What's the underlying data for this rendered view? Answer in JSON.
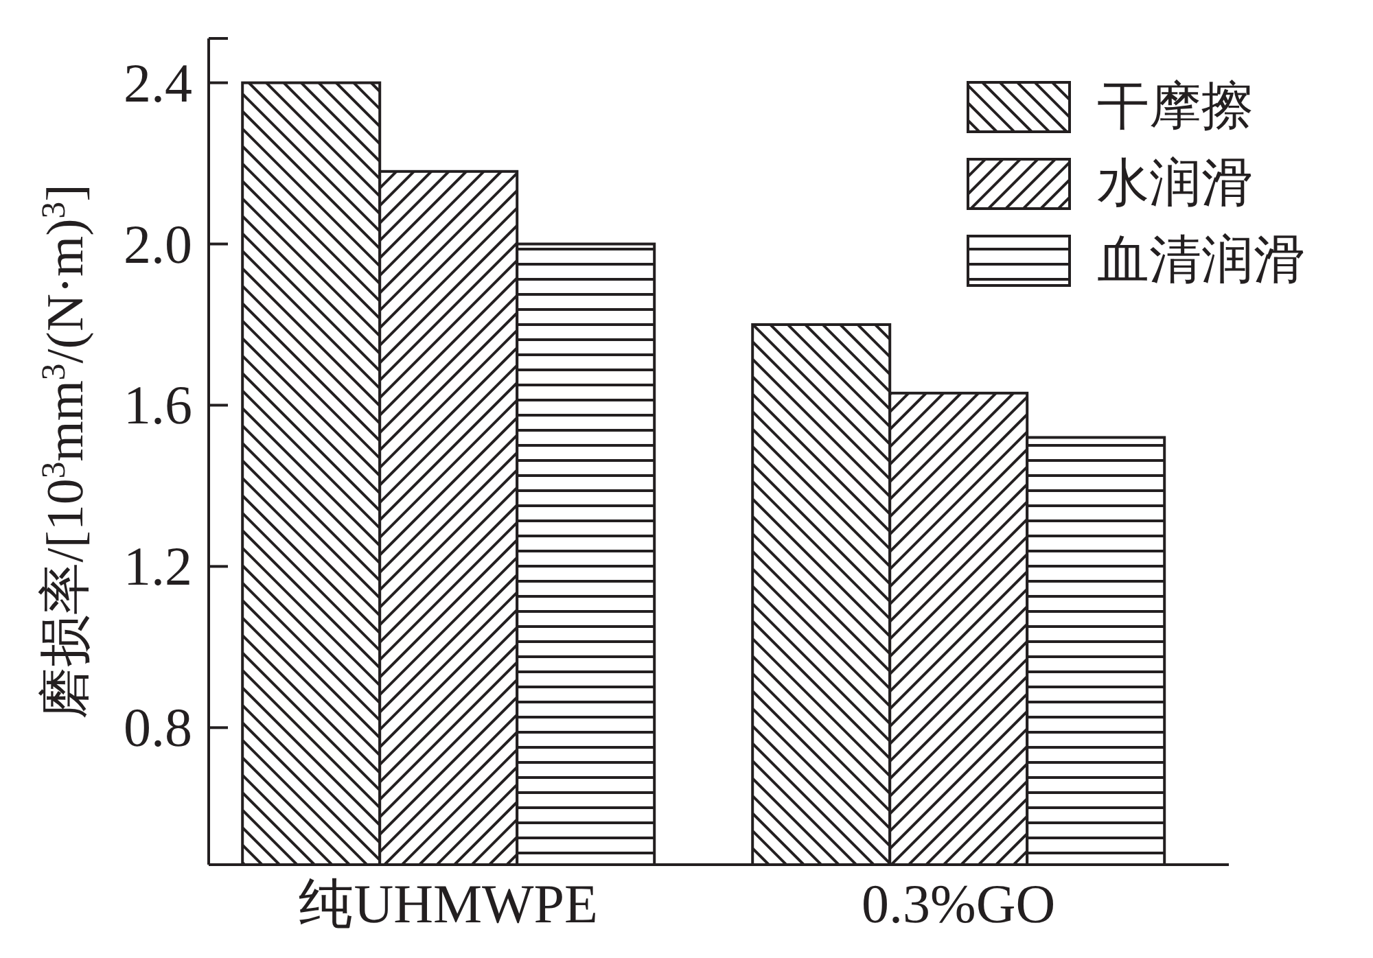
{
  "chart_data": {
    "type": "bar",
    "ylabel": "磨损率/[10$^{3}$mm$^{3}$/(N·m)$^{3}$]",
    "categories": [
      "纯UHMWPE",
      "0.3%GO"
    ],
    "series": [
      {
        "name": "干摩擦",
        "color": "#231f20",
        "values": [
          2.4,
          1.8
        ]
      },
      {
        "name": "水润滑",
        "color": "#231f20",
        "values": [
          2.18,
          1.63
        ]
      },
      {
        "name": "血清润滑",
        "color": "#231f20",
        "values": [
          2.0,
          1.52
        ]
      }
    ],
    "ylim": [
      0.46,
      2.51
    ],
    "yticks": [
      {
        "value": 0.8,
        "label": "0.8"
      },
      {
        "value": 1.2,
        "label": "1.2"
      },
      {
        "value": 1.6,
        "label": "1.6"
      },
      {
        "value": 2.0,
        "label": "2.0"
      },
      {
        "value": 2.4,
        "label": "2.4"
      },
      {
        "value": 2.51,
        "label": null
      }
    ],
    "grid": false,
    "legend": "top right"
  }
}
